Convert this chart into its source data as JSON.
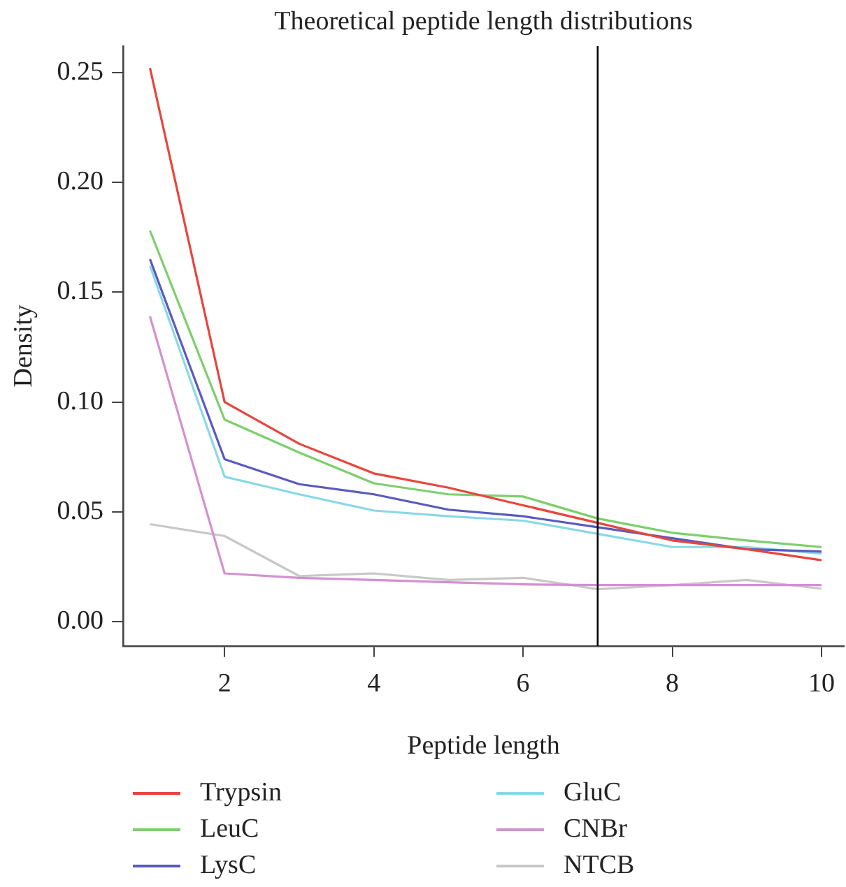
{
  "chart_data": {
    "type": "line",
    "title": "Theoretical peptide length distributions",
    "xlabel": "Peptide length",
    "ylabel": "Density",
    "x": [
      1,
      2,
      3,
      4,
      5,
      6,
      7,
      8,
      9,
      10
    ],
    "series": [
      {
        "name": "Trypsin",
        "color": "#e8453c",
        "values": [
          0.252,
          0.1,
          0.081,
          0.0675,
          0.061,
          0.053,
          0.045,
          0.037,
          0.033,
          0.028
        ]
      },
      {
        "name": "LeuC",
        "color": "#7ccf6b",
        "values": [
          0.178,
          0.092,
          0.077,
          0.063,
          0.058,
          0.057,
          0.047,
          0.0405,
          0.037,
          0.034
        ]
      },
      {
        "name": "LysC",
        "color": "#5a5ac0",
        "values": [
          0.165,
          0.074,
          0.0626,
          0.058,
          0.051,
          0.048,
          0.043,
          0.038,
          0.033,
          0.032
        ]
      },
      {
        "name": "GluC",
        "color": "#8ad8e6",
        "values": [
          0.162,
          0.066,
          0.058,
          0.0506,
          0.048,
          0.046,
          0.04,
          0.034,
          0.034,
          0.031
        ]
      },
      {
        "name": "CNBr",
        "color": "#d490d0",
        "values": [
          0.139,
          0.022,
          0.02,
          0.019,
          0.018,
          0.017,
          0.0167,
          0.0167,
          0.0167,
          0.0167
        ]
      },
      {
        "name": "NTCB",
        "color": "#c8c8c8",
        "values": [
          0.0444,
          0.039,
          0.0208,
          0.022,
          0.019,
          0.02,
          0.0148,
          0.0167,
          0.019,
          0.015
        ]
      }
    ],
    "xlim": [
      0.64,
      10.3
    ],
    "xticks": [
      2,
      4,
      6,
      8,
      10
    ],
    "ylim": [
      -0.011,
      0.262
    ],
    "yticks": [
      {
        "value": 0,
        "label": "0.00"
      },
      {
        "value": 0.05,
        "label": "0.05"
      },
      {
        "value": 0.1,
        "label": "0.10"
      },
      {
        "value": 0.15,
        "label": "0.15"
      },
      {
        "value": 0.2,
        "label": "0.20"
      },
      {
        "value": 0.25,
        "label": "0.25"
      }
    ],
    "ref_lines": [
      {
        "axis": "x",
        "value": 7,
        "color": "#000000"
      }
    ],
    "grid": false,
    "legend": "bottom",
    "marker": "none",
    "line_style": "solid"
  }
}
